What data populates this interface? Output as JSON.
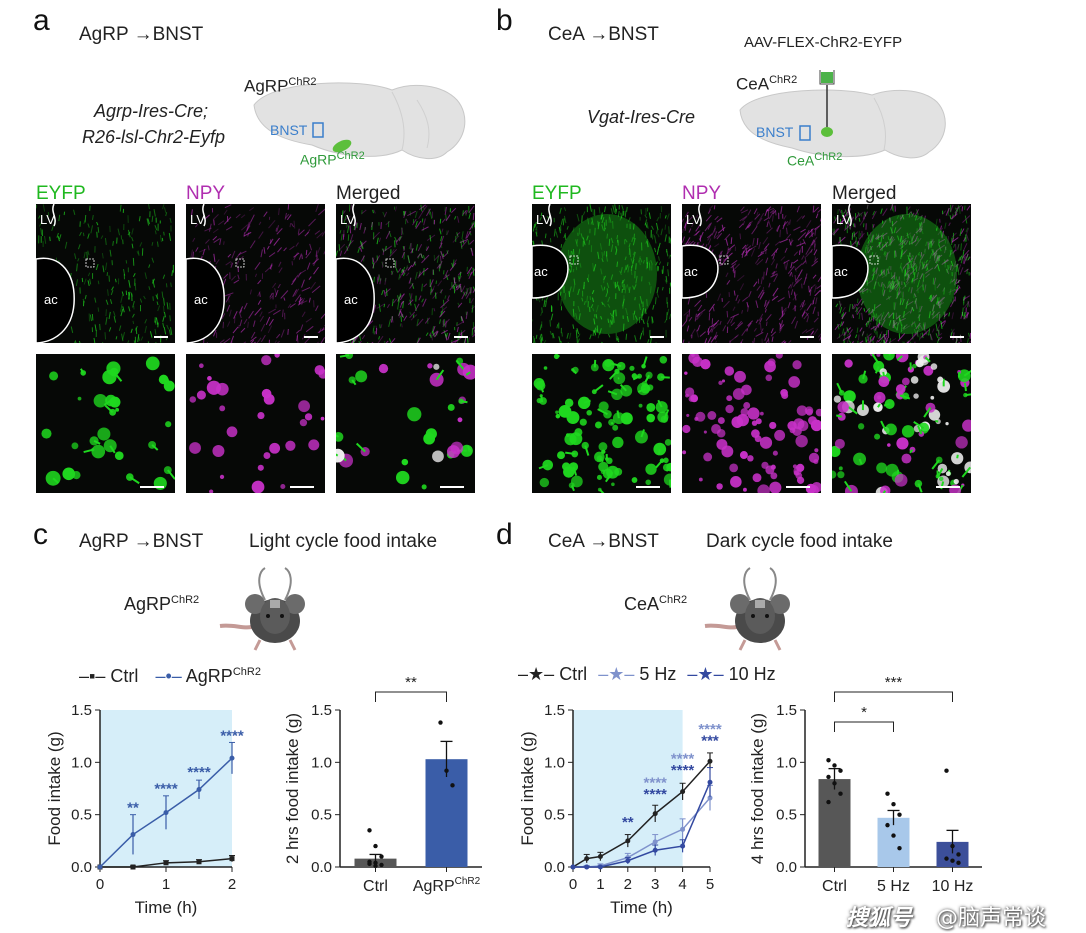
{
  "panels": {
    "a": {
      "letter": "a",
      "pathway": "AgRP →BNST",
      "genotype": [
        "Agrp-Ires-Cre;",
        "R26-lsl-Chr2-Eyfp"
      ],
      "brain_title": "AgRP",
      "brain_title_sup": "ChR2",
      "brain_region": "BNST",
      "brain_source": "AgRP",
      "brain_source_sup": "ChR2",
      "channels": [
        "EYFP",
        "NPY",
        "Merged"
      ],
      "image_labels": {
        "lv": "LV",
        "ac": "ac"
      }
    },
    "b": {
      "letter": "b",
      "pathway": "CeA →BNST",
      "genotype": [
        "Vgat-Ires-Cre"
      ],
      "virus": "AAV-FLEX-ChR2-EYFP",
      "brain_title": "CeA",
      "brain_title_sup": "ChR2",
      "brain_region": "BNST",
      "brain_source": "CeA",
      "brain_source_sup": "ChR2",
      "channels": [
        "EYFP",
        "NPY",
        "Merged"
      ],
      "image_labels": {
        "lv": "LV",
        "ac": "ac"
      }
    },
    "c": {
      "letter": "c",
      "pathway": "AgRP →BNST",
      "title": "Light cycle food intake",
      "mouse_label": "AgRP",
      "mouse_label_sup": "ChR2",
      "legend": [
        {
          "name": "Ctrl"
        },
        {
          "name": "AgRP",
          "sup": "ChR2"
        }
      ]
    },
    "d": {
      "letter": "d",
      "pathway": "CeA →BNST",
      "title": "Dark cycle food intake",
      "mouse_label": "CeA",
      "mouse_label_sup": "ChR2",
      "legend": [
        {
          "name": "Ctrl"
        },
        {
          "name": "5 Hz"
        },
        {
          "name": "10 Hz"
        }
      ]
    }
  },
  "colors": {
    "eyfp": "#1fd81f",
    "npy": "#c831c8",
    "shade": "#d6eef9",
    "ctrl": "#222222",
    "agrp": "#3a5da8",
    "hz5": "#7f92cc",
    "hz10": "#3349a0",
    "bar_ctrl": "#575757",
    "bar_5hz": "#a8c8ea",
    "bar_10hz": "#3c4f9a",
    "region_blue": "#3a7ecb",
    "region_green": "#2f9a3a"
  },
  "chart_data": [
    {
      "type": "line",
      "panel": "c",
      "xlabel": "Time (h)",
      "ylabel": "Food intake (g)",
      "xlim": [
        0,
        2
      ],
      "ylim": [
        0,
        1.5
      ],
      "xticks": [
        "0",
        "1",
        "2"
      ],
      "yticks": [
        "0.0",
        "0.5",
        "1.0",
        "1.5"
      ],
      "shaded": [
        0,
        2
      ],
      "x": [
        0,
        0.5,
        1,
        1.5,
        2
      ],
      "series": [
        {
          "name": "Ctrl",
          "values": [
            0,
            0.0,
            0.04,
            0.05,
            0.08
          ],
          "err": [
            0,
            0.01,
            0.02,
            0.02,
            0.03
          ]
        },
        {
          "name": "AgRP ChR2",
          "values": [
            0,
            0.31,
            0.52,
            0.74,
            1.04
          ],
          "err": [
            0,
            0.19,
            0.16,
            0.09,
            0.15
          ]
        }
      ],
      "significance": [
        {
          "x": 0.5,
          "y": 0.52,
          "text": "**"
        },
        {
          "x": 1,
          "y": 0.7,
          "text": "****"
        },
        {
          "x": 1.5,
          "y": 0.86,
          "text": "****"
        },
        {
          "x": 2,
          "y": 1.21,
          "text": "****"
        }
      ]
    },
    {
      "type": "bar",
      "panel": "c",
      "ylabel": "2 hrs food intake (g)",
      "ylim": [
        0,
        1.5
      ],
      "yticks": [
        "0.0",
        "0.5",
        "1.0",
        "1.5"
      ],
      "categories": [
        {
          "name": "Ctrl"
        },
        {
          "name": "AgRP",
          "sup": "ChR2"
        }
      ],
      "values": [
        0.08,
        1.03
      ],
      "err": [
        0.04,
        0.17
      ],
      "points": [
        [
          0.35,
          0.2,
          0.1,
          0.05,
          0.04,
          0.02,
          0.03,
          0.01
        ],
        [
          1.38,
          0.92,
          0.78
        ]
      ],
      "significance": [
        {
          "from": 0,
          "to": 1,
          "text": "**"
        }
      ]
    },
    {
      "type": "line",
      "panel": "d",
      "xlabel": "Time (h)",
      "ylabel": "Food intake (g)",
      "xlim": [
        0,
        5
      ],
      "ylim": [
        0,
        1.5
      ],
      "xticks": [
        "0",
        "1",
        "2",
        "3",
        "4",
        "5"
      ],
      "yticks": [
        "0.0",
        "0.5",
        "1.0",
        "1.5"
      ],
      "shaded": [
        0,
        4
      ],
      "x": [
        0,
        0.5,
        1,
        2,
        3,
        4,
        5
      ],
      "series": [
        {
          "name": "Ctrl",
          "values": [
            0,
            0.08,
            0.1,
            0.25,
            0.51,
            0.72,
            1.01
          ],
          "err": [
            0,
            0.04,
            0.04,
            0.06,
            0.08,
            0.08,
            0.08
          ]
        },
        {
          "name": "5 Hz",
          "values": [
            0,
            0.0,
            0.01,
            0.09,
            0.24,
            0.36,
            0.66
          ],
          "err": [
            0,
            0.01,
            0.02,
            0.04,
            0.07,
            0.1,
            0.12
          ]
        },
        {
          "name": "10 Hz",
          "values": [
            0,
            0.0,
            0.0,
            0.06,
            0.16,
            0.2,
            0.81
          ],
          "err": [
            0,
            0.01,
            0.01,
            0.03,
            0.05,
            0.06,
            0.14
          ]
        }
      ],
      "significance": [
        {
          "x": 2,
          "y": 0.38,
          "text": "**",
          "color": "hz10"
        },
        {
          "x": 3,
          "y": 0.76,
          "text": "****",
          "color": "hz5"
        },
        {
          "x": 3,
          "y": 0.65,
          "text": "****",
          "color": "hz10"
        },
        {
          "x": 4,
          "y": 0.99,
          "text": "****",
          "color": "hz5"
        },
        {
          "x": 4,
          "y": 0.88,
          "text": "****",
          "color": "hz10"
        },
        {
          "x": 5,
          "y": 1.27,
          "text": "****",
          "color": "hz5"
        },
        {
          "x": 5,
          "y": 1.16,
          "text": "***",
          "color": "hz10"
        }
      ]
    },
    {
      "type": "bar",
      "panel": "d",
      "ylabel": "4 hrs food intake (g)",
      "ylim": [
        0,
        1.5
      ],
      "yticks": [
        "0.0",
        "0.5",
        "1.0",
        "1.5"
      ],
      "categories": [
        {
          "name": "Ctrl"
        },
        {
          "name": "5 Hz"
        },
        {
          "name": "10 Hz"
        }
      ],
      "values": [
        0.84,
        0.47,
        0.24
      ],
      "err": [
        0.1,
        0.07,
        0.11
      ],
      "points": [
        [
          1.02,
          0.97,
          0.92,
          0.86,
          0.8,
          0.7,
          0.62
        ],
        [
          0.7,
          0.6,
          0.5,
          0.4,
          0.3,
          0.18
        ],
        [
          0.92,
          0.2,
          0.12,
          0.08,
          0.06,
          0.04
        ]
      ],
      "significance": [
        {
          "from": 0,
          "to": 1,
          "text": "*"
        },
        {
          "from": 0,
          "to": 2,
          "text": "***"
        }
      ]
    }
  ],
  "watermark": "@脑声常谈",
  "watermark_logo": "搜狐号"
}
